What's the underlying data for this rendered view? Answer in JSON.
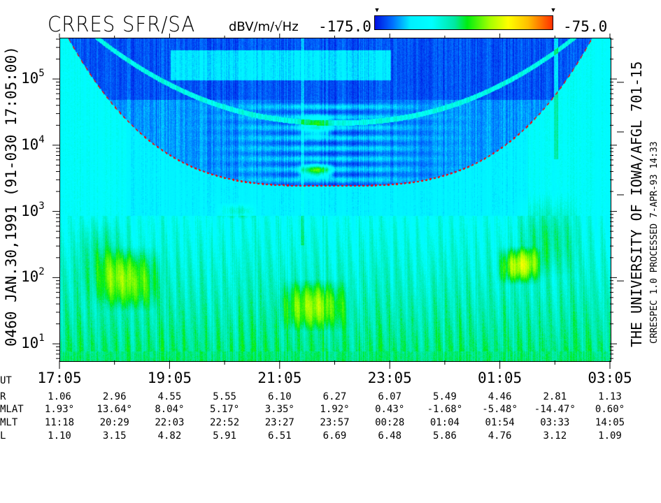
{
  "header": {
    "title": "CRRES SFR/SA",
    "units": "dBV/m/√Hz",
    "colorbar_min_label": "-175.0",
    "colorbar_max_label": "-75.0"
  },
  "left_title": "0460   JAN.30,1991   (91-030 17:05:00)",
  "right_title": "THE UNIVERSITY OF IOWA/AFGL 701-15",
  "right_subtitle": "CRRESPEC 1.0   PROCESSED  7-APR-93  14:33",
  "chart_data": {
    "type": "heatmap",
    "title": "CRRES SFR/SA",
    "ylabel": "",
    "yscale": "log",
    "ylim": [
      5.6,
      420000
    ],
    "yticks": [
      {
        "base": "10",
        "exp": "1"
      },
      {
        "base": "10",
        "exp": "2"
      },
      {
        "base": "10",
        "exp": "3"
      },
      {
        "base": "10",
        "exp": "4"
      },
      {
        "base": "10",
        "exp": "5"
      }
    ],
    "xlim": [
      "17:05",
      "03:05"
    ],
    "x_tick_labels": [
      "17:05",
      "19:05",
      "21:05",
      "23:05",
      "01:05",
      "03:05"
    ],
    "x_minor_ticks_every_hours": 1,
    "colorbar": {
      "min": -175.0,
      "max": -75.0,
      "units": "dBV/m/√Hz",
      "colors": [
        "#0010e0",
        "#00ffff",
        "#00ee10",
        "#ffff00",
        "#ff3000"
      ]
    },
    "overlay_curve_color": "#ff0000"
  },
  "ephemeris": {
    "rows": [
      {
        "label": "UT",
        "values": [
          "17:05",
          "",
          "19:05",
          "",
          "21:05",
          "",
          "23:05",
          "",
          "01:05",
          "",
          "03:05"
        ]
      },
      {
        "label": "R",
        "values": [
          "1.06",
          "2.96",
          "4.55",
          "5.55",
          "6.10",
          "6.27",
          "6.07",
          "5.49",
          "4.46",
          "2.81",
          "1.13"
        ]
      },
      {
        "label": "MLAT",
        "values": [
          "1.93°",
          "13.64°",
          "8.04°",
          "5.17°",
          "3.35°",
          "1.92°",
          "0.43°",
          "-1.68°",
          "-5.48°",
          "-14.47°",
          "0.60°"
        ]
      },
      {
        "label": "MLT",
        "values": [
          "11:18",
          "20:29",
          "22:03",
          "22:52",
          "23:27",
          "23:57",
          "00:28",
          "01:04",
          "01:54",
          "03:33",
          "14:05"
        ]
      },
      {
        "label": "L",
        "values": [
          "1.10",
          "3.15",
          "4.82",
          "5.91",
          "6.51",
          "6.69",
          "6.48",
          "5.86",
          "4.76",
          "3.12",
          "1.09"
        ]
      }
    ]
  }
}
